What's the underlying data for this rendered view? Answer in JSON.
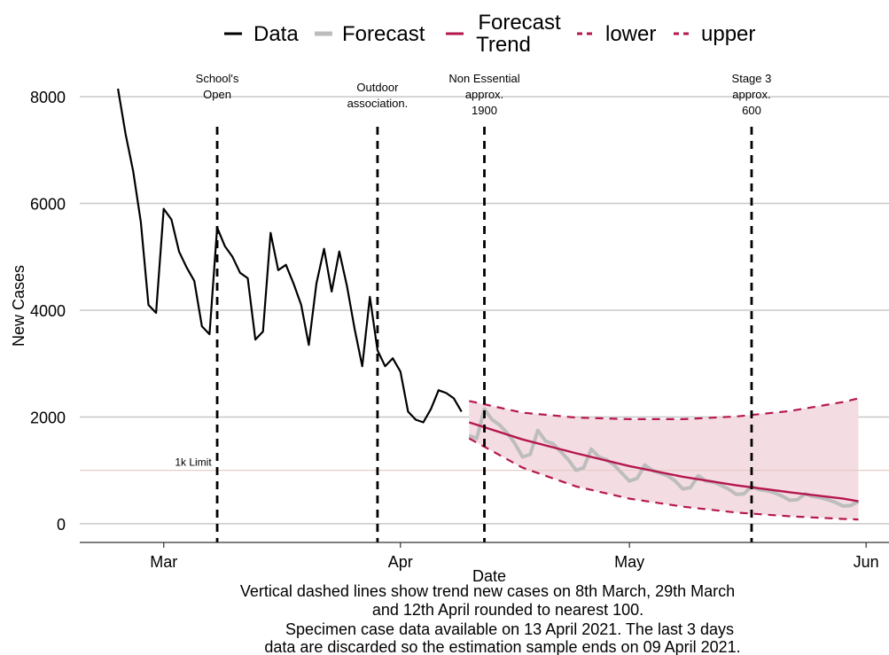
{
  "chart_data": {
    "type": "line",
    "xlabel": "Date",
    "ylabel": "New Cases",
    "ylim": [
      -350,
      8400
    ],
    "xlim": [
      "2021-02-18",
      "2021-06-04"
    ],
    "yticks": [
      0,
      2000,
      4000,
      6000,
      8000
    ],
    "xticks": [
      {
        "date": "2021-03-01",
        "label": "Mar"
      },
      {
        "date": "2021-04-01",
        "label": "Apr"
      },
      {
        "date": "2021-05-01",
        "label": "May"
      },
      {
        "date": "2021-06-01",
        "label": "Jun"
      }
    ],
    "grid": "horizontal",
    "legend": {
      "position": "top",
      "items": [
        {
          "label": "Data",
          "color": "#000000",
          "style": "solid"
        },
        {
          "label": "Forecast",
          "color": "#bdbdbd",
          "style": "solid"
        },
        {
          "label": "Forecast",
          "label2": "Trend",
          "color": "#b5174f",
          "style": "solid"
        },
        {
          "label": "lower",
          "color": "#b5174f",
          "style": "dashed"
        },
        {
          "label": "upper",
          "color": "#b5174f",
          "style": "dashed"
        }
      ]
    },
    "series": [
      {
        "name": "Data",
        "color": "#000000",
        "points": [
          [
            "2021-02-23",
            8150
          ],
          [
            "2021-02-24",
            7300
          ],
          [
            "2021-02-25",
            6600
          ],
          [
            "2021-02-26",
            5650
          ],
          [
            "2021-02-27",
            4100
          ],
          [
            "2021-02-28",
            3950
          ],
          [
            "2021-03-01",
            5900
          ],
          [
            "2021-03-02",
            5700
          ],
          [
            "2021-03-03",
            5100
          ],
          [
            "2021-03-04",
            4800
          ],
          [
            "2021-03-05",
            4550
          ],
          [
            "2021-03-06",
            3700
          ],
          [
            "2021-03-07",
            3550
          ],
          [
            "2021-03-08",
            5550
          ],
          [
            "2021-03-09",
            5200
          ],
          [
            "2021-03-10",
            5000
          ],
          [
            "2021-03-11",
            4700
          ],
          [
            "2021-03-12",
            4600
          ],
          [
            "2021-03-13",
            3450
          ],
          [
            "2021-03-14",
            3600
          ],
          [
            "2021-03-15",
            5450
          ],
          [
            "2021-03-16",
            4750
          ],
          [
            "2021-03-17",
            4850
          ],
          [
            "2021-03-18",
            4500
          ],
          [
            "2021-03-19",
            4100
          ],
          [
            "2021-03-20",
            3350
          ],
          [
            "2021-03-21",
            4500
          ],
          [
            "2021-03-22",
            5150
          ],
          [
            "2021-03-23",
            4350
          ],
          [
            "2021-03-24",
            5100
          ],
          [
            "2021-03-25",
            4450
          ],
          [
            "2021-03-26",
            3650
          ],
          [
            "2021-03-27",
            2950
          ],
          [
            "2021-03-28",
            4250
          ],
          [
            "2021-03-29",
            3250
          ],
          [
            "2021-03-30",
            2950
          ],
          [
            "2021-03-31",
            3100
          ],
          [
            "2021-04-01",
            2850
          ],
          [
            "2021-04-02",
            2100
          ],
          [
            "2021-04-03",
            1950
          ],
          [
            "2021-04-04",
            1900
          ],
          [
            "2021-04-05",
            2150
          ],
          [
            "2021-04-06",
            2500
          ],
          [
            "2021-04-07",
            2450
          ],
          [
            "2021-04-08",
            2350
          ],
          [
            "2021-04-09",
            2100
          ]
        ]
      },
      {
        "name": "Forecast",
        "color": "#bdbdbd",
        "points": [
          [
            "2021-04-10",
            1650
          ],
          [
            "2021-04-11",
            1600
          ],
          [
            "2021-04-12",
            2150
          ],
          [
            "2021-04-13",
            1950
          ],
          [
            "2021-04-14",
            1850
          ],
          [
            "2021-04-15",
            1700
          ],
          [
            "2021-04-16",
            1500
          ],
          [
            "2021-04-17",
            1250
          ],
          [
            "2021-04-18",
            1300
          ],
          [
            "2021-04-19",
            1750
          ],
          [
            "2021-04-20",
            1550
          ],
          [
            "2021-04-21",
            1500
          ],
          [
            "2021-04-22",
            1350
          ],
          [
            "2021-04-23",
            1200
          ],
          [
            "2021-04-24",
            1000
          ],
          [
            "2021-04-25",
            1050
          ],
          [
            "2021-04-26",
            1400
          ],
          [
            "2021-04-27",
            1250
          ],
          [
            "2021-04-28",
            1200
          ],
          [
            "2021-04-29",
            1100
          ],
          [
            "2021-04-30",
            950
          ],
          [
            "2021-05-01",
            800
          ],
          [
            "2021-05-02",
            850
          ],
          [
            "2021-05-03",
            1100
          ],
          [
            "2021-05-04",
            1000
          ],
          [
            "2021-05-05",
            950
          ],
          [
            "2021-05-06",
            900
          ],
          [
            "2021-05-07",
            800
          ],
          [
            "2021-05-08",
            650
          ],
          [
            "2021-05-09",
            680
          ],
          [
            "2021-05-10",
            900
          ],
          [
            "2021-05-11",
            800
          ],
          [
            "2021-05-12",
            780
          ],
          [
            "2021-05-13",
            720
          ],
          [
            "2021-05-14",
            650
          ],
          [
            "2021-05-15",
            550
          ],
          [
            "2021-05-16",
            560
          ],
          [
            "2021-05-17",
            700
          ],
          [
            "2021-05-18",
            640
          ],
          [
            "2021-05-19",
            620
          ],
          [
            "2021-05-20",
            580
          ],
          [
            "2021-05-21",
            520
          ],
          [
            "2021-05-22",
            440
          ],
          [
            "2021-05-23",
            450
          ],
          [
            "2021-05-24",
            560
          ],
          [
            "2021-05-25",
            510
          ],
          [
            "2021-05-26",
            490
          ],
          [
            "2021-05-27",
            450
          ],
          [
            "2021-05-28",
            400
          ],
          [
            "2021-05-29",
            330
          ],
          [
            "2021-05-30",
            340
          ],
          [
            "2021-05-31",
            420
          ]
        ]
      },
      {
        "name": "Forecast Trend",
        "color": "#b5174f",
        "points": [
          [
            "2021-04-10",
            1900
          ],
          [
            "2021-04-17",
            1580
          ],
          [
            "2021-04-24",
            1320
          ],
          [
            "2021-05-01",
            1080
          ],
          [
            "2021-05-08",
            880
          ],
          [
            "2021-05-15",
            720
          ],
          [
            "2021-05-22",
            590
          ],
          [
            "2021-05-29",
            470
          ],
          [
            "2021-05-31",
            420
          ]
        ]
      },
      {
        "name": "lower",
        "color": "#b5174f",
        "dashed": true,
        "points": [
          [
            "2021-04-10",
            1600
          ],
          [
            "2021-04-17",
            1050
          ],
          [
            "2021-04-24",
            700
          ],
          [
            "2021-05-01",
            470
          ],
          [
            "2021-05-08",
            320
          ],
          [
            "2021-05-15",
            210
          ],
          [
            "2021-05-22",
            140
          ],
          [
            "2021-05-29",
            90
          ],
          [
            "2021-05-31",
            80
          ]
        ]
      },
      {
        "name": "upper",
        "color": "#b5174f",
        "dashed": true,
        "points": [
          [
            "2021-04-10",
            2300
          ],
          [
            "2021-04-17",
            2080
          ],
          [
            "2021-04-24",
            1990
          ],
          [
            "2021-05-01",
            1960
          ],
          [
            "2021-05-08",
            1960
          ],
          [
            "2021-05-15",
            2010
          ],
          [
            "2021-05-22",
            2110
          ],
          [
            "2021-05-29",
            2280
          ],
          [
            "2021-05-31",
            2350
          ]
        ]
      }
    ],
    "vlines": [
      {
        "date": "2021-03-08",
        "label_lines": [
          "School's",
          "Open"
        ]
      },
      {
        "date": "2021-03-29",
        "label_lines": [
          "Outdoor",
          "association."
        ]
      },
      {
        "date": "2021-04-12",
        "label_lines": [
          "Non Essential",
          "approx.",
          "1900"
        ]
      },
      {
        "date": "2021-05-17",
        "label_lines": [
          "Stage 3",
          "approx.",
          "600"
        ]
      }
    ],
    "hline": {
      "value": 1000,
      "label": "1k Limit",
      "color": "#e3c7c2"
    },
    "ribbon_color": "#f4dde2"
  },
  "caption": {
    "line1": "Vertical dashed lines show trend new cases on 8th March, 29th March",
    "line2": "and 12th April rounded to nearest 100.",
    "line3": "Specimen case data available on 13 April 2021. The last 3 days",
    "line4": "data are discarded so the estimation sample ends on 09 April 2021."
  }
}
